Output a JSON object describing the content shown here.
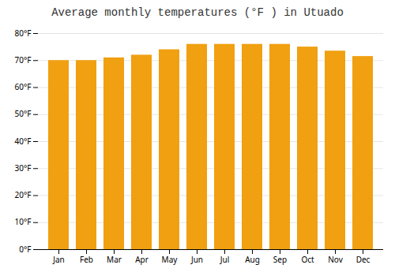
{
  "chart_data": {
    "type": "bar",
    "title": "Average monthly temperatures (°F ) in Utuado",
    "categories": [
      "Jan",
      "Feb",
      "Mar",
      "Apr",
      "May",
      "Jun",
      "Jul",
      "Aug",
      "Sep",
      "Oct",
      "Nov",
      "Dec"
    ],
    "values": [
      70.0,
      70.0,
      71.0,
      72.0,
      74.0,
      76.0,
      76.0,
      76.0,
      76.0,
      75.0,
      73.5,
      71.5
    ],
    "color": "#F0A010",
    "ylim": [
      0,
      80
    ],
    "yticks": [
      {
        "value": 0,
        "label": "0°F"
      },
      {
        "value": 10,
        "label": "10°F"
      },
      {
        "value": 20,
        "label": "20°F"
      },
      {
        "value": 30,
        "label": "30°F"
      },
      {
        "value": 40,
        "label": "40°F"
      },
      {
        "value": 50,
        "label": "50°F"
      },
      {
        "value": 60,
        "label": "60°F"
      },
      {
        "value": 70,
        "label": "70°F"
      },
      {
        "value": 80,
        "label": "80°F"
      }
    ],
    "grid": true
  }
}
